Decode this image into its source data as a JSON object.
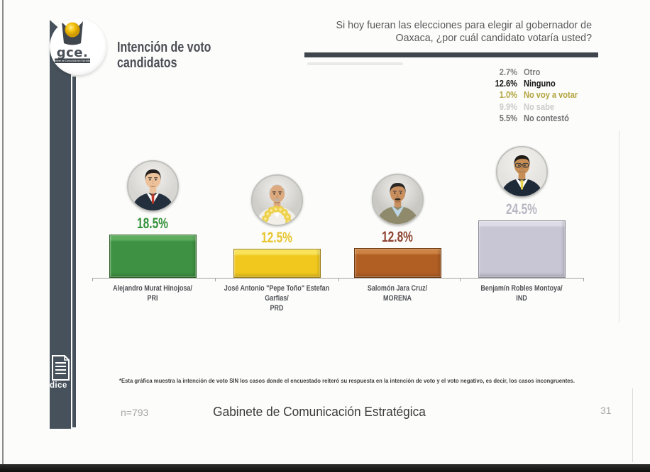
{
  "header": {
    "title_line1": "Intención de voto",
    "title_line2": "candidatos",
    "question_line1": "Si hoy fueran las elecciones para elegir al gobernador de",
    "question_line2": "Oaxaca, ¿por cuál candidato votaría usted?"
  },
  "logo": {
    "wordmark": "gce.",
    "banner_text": "Gabinete de Comunicación Estratégica"
  },
  "sidebar": {
    "index_label": "dice"
  },
  "chart_data": {
    "type": "bar",
    "title": "Intención de voto candidatos",
    "question": "Si hoy fueran las elecciones para elegir al gobernador de Oaxaca, ¿por cuál candidato votaría usted?",
    "ylim": [
      0,
      30
    ],
    "categories": [
      "Alejandro Murat Hinojosa/ PRI",
      "José Antonio \"Pepe Toño\" Estefan Garfias/ PRD",
      "Salomón Jara Cruz/ MORENA",
      "Benjamín Robles Montoya/ IND"
    ],
    "values": [
      18.5,
      12.5,
      12.8,
      24.5
    ],
    "bars": [
      {
        "value_label": "18.5%",
        "name_lines": [
          "Alejandro Murat Hinojosa/",
          "PRI"
        ],
        "bar_color": "#3e9142",
        "bar_top_color": "#5fae60",
        "bar_border": "#2a5c22",
        "label_color": "#33913a",
        "photo": {
          "bg": "#d7d6d2",
          "skin": "#edc29a",
          "hair": "#26211f",
          "hairstyle": "full",
          "suit": "#232f3d",
          "shirt": "#ffffff",
          "tie": "#c13b2a",
          "extras": []
        }
      },
      {
        "value_label": "12.5%",
        "name_lines": [
          "José Antonio \"Pepe Toño\" Estefan",
          "Garfias/",
          "PRD"
        ],
        "bar_color": "#f1c81e",
        "bar_top_color": "#f8e35a",
        "bar_border": "#9c7d12",
        "label_color": "#e7c52e",
        "photo": {
          "bg": "#cfcec9",
          "skin": "#dda97e",
          "hair": "#c4beb4",
          "hairstyle": "bald",
          "suit": "#f1efe8",
          "shirt": "#ffffff",
          "tie": null,
          "extras": [
            "lei",
            "mustache-gray"
          ]
        }
      },
      {
        "value_label": "12.8%",
        "name_lines": [
          "Salomón Jara Cruz/",
          "MORENA"
        ],
        "bar_color": "#b25f24",
        "bar_top_color": "#cd8343",
        "bar_border": "#69380f",
        "label_color": "#8e4431",
        "photo": {
          "bg": "#c9c8c3",
          "skin": "#c98f5f",
          "hair": "#2c2825",
          "hairstyle": "full",
          "suit": "#8f8a6b",
          "shirt": "#bcd4e4",
          "tie": null,
          "extras": [
            "mustache-dark"
          ]
        }
      },
      {
        "value_label": "24.5%",
        "name_lines": [
          "Benjamín Robles Montoya/",
          "IND"
        ],
        "bar_color": "#c8c5d4",
        "bar_top_color": "#dedce6",
        "bar_border": "#8b8a96",
        "label_color": "#b9b6c4",
        "photo": {
          "bg": "#e5e3df",
          "skin": "#c78f56",
          "hair": "#1f1b19",
          "hairstyle": "full",
          "suit": "#1f2a38",
          "shirt": "#ffffff",
          "tie": "#e8d24b",
          "extras": [
            "glasses",
            "smile"
          ]
        }
      }
    ],
    "other_responses": [
      {
        "value": "2.7%",
        "label": "Otro",
        "color": "#7e7e7e"
      },
      {
        "value": "12.6%",
        "label": "Ninguno",
        "color": "#141414"
      },
      {
        "value": "1.0%",
        "label": "No voy a votar",
        "color": "#b2a43e"
      },
      {
        "value": "9.9%",
        "label": "No sabe",
        "color": "#cbcbcb"
      },
      {
        "value": "5.5%",
        "label": "No contestó",
        "color": "#6f7072"
      }
    ],
    "sample_size": "n=793"
  },
  "footer": {
    "footnote": "*Esta gráfica muestra la intención de voto SIN los casos donde el encuestado reiteró su respuesta en la intención de voto y el voto negativo, es decir, los casos incongruentes.",
    "sample_size": "n=793",
    "brand": "Gabinete de Comunicación Estratégica",
    "page_number": "31"
  }
}
